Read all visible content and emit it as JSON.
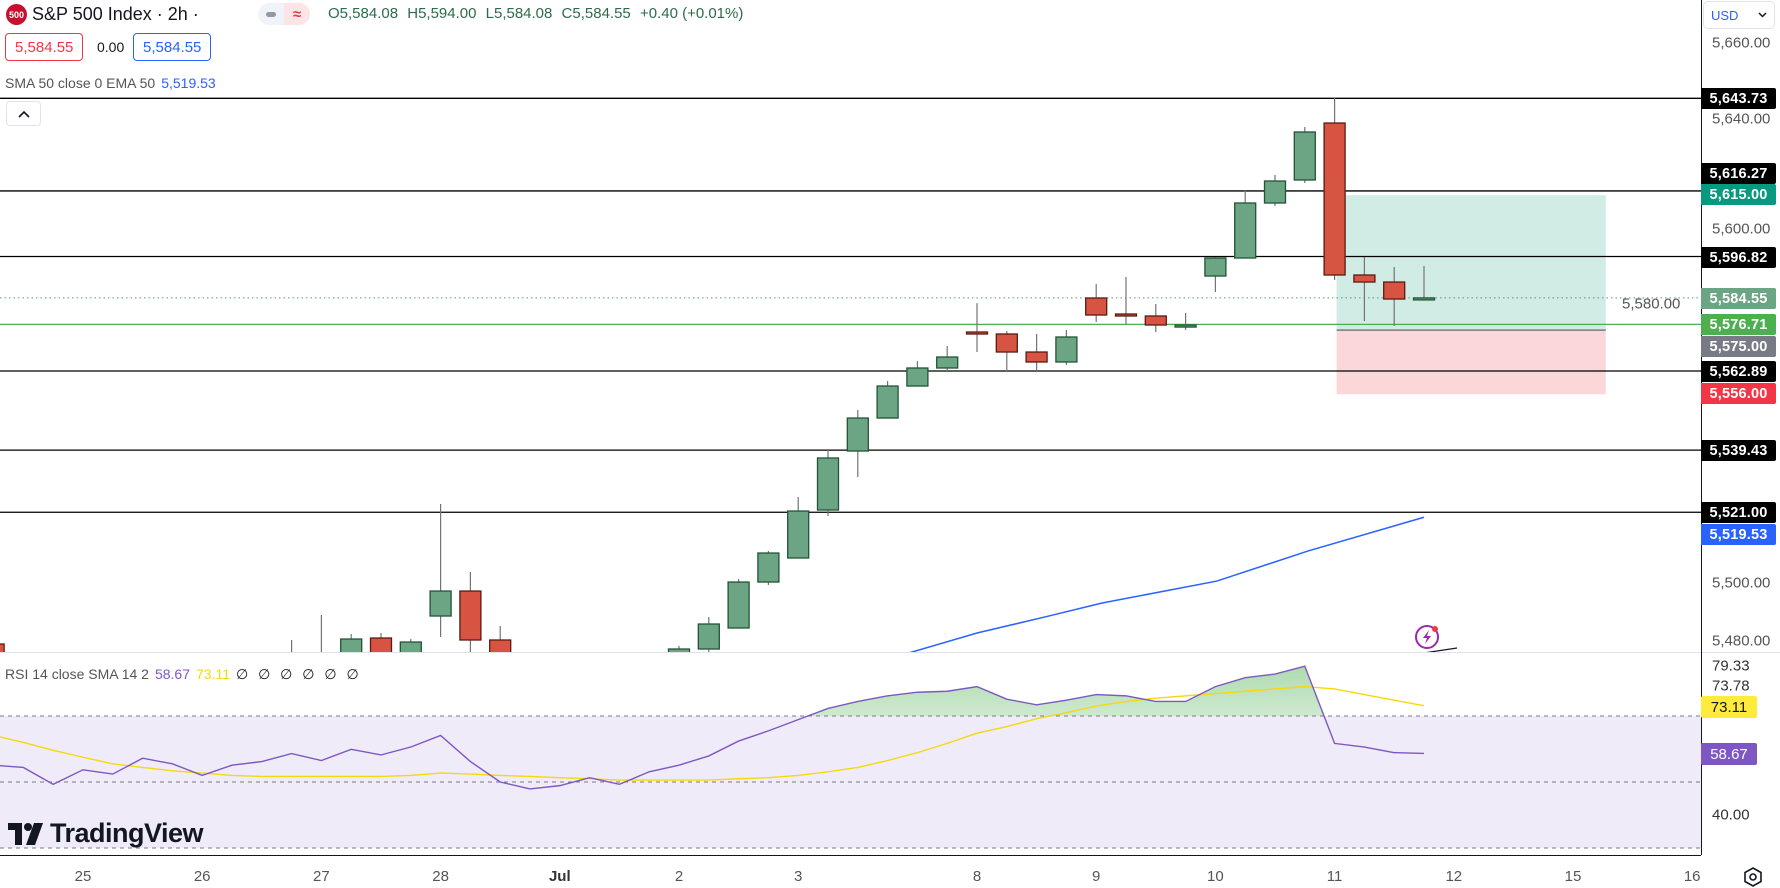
{
  "header": {
    "logo_text": "500",
    "title": "S&P 500 Index · 2h ·",
    "open": "O5,584.08",
    "high": "H5,594.00",
    "low": "L5,584.08",
    "close": "C5,584.55",
    "change": "+0.40 (+0.01%)",
    "sell_price": "5,584.55",
    "spread": "0.00",
    "buy_price": "5,584.55"
  },
  "ema_legend": {
    "label": "SMA 50 close 0 EMA 50",
    "value": "5,519.53"
  },
  "rsi_legend": {
    "label": "RSI 14 close SMA 14 2",
    "rsi": "58.67",
    "sma": "73.11",
    "extras": "∅ ∅ ∅ ∅ ∅ ∅"
  },
  "currency": "USD",
  "branding": "TradingView",
  "price_badges": [
    {
      "label": "5,643.73",
      "bg": "#000000"
    },
    {
      "label": "5,616.27",
      "bg": "#000000"
    },
    {
      "label": "5,615.00",
      "bg": "#089981"
    },
    {
      "label": "5,596.82",
      "bg": "#000000"
    },
    {
      "label": "5,584.55",
      "bg": "#6ba583"
    },
    {
      "label": "5,576.71",
      "bg": "#4caf50"
    },
    {
      "label": "5,575.00",
      "bg": "#787b86"
    },
    {
      "label": "5,562.89",
      "bg": "#000000"
    },
    {
      "label": "5,556.00",
      "bg": "#f23645"
    },
    {
      "label": "5,539.43",
      "bg": "#000000"
    },
    {
      "label": "5,521.00",
      "bg": "#000000"
    },
    {
      "label": "5,519.53",
      "bg": "#2962ff"
    }
  ],
  "rsi_axis": {
    "ticks": [
      "79.33",
      "73.78",
      "40.00"
    ],
    "sma_badge": "73.11",
    "rsi_badge": "58.67"
  },
  "chart_data": {
    "type": "candlestick",
    "symbol": "S&P 500 Index",
    "interval": "2h",
    "price_ticks": [
      {
        "value": 5660,
        "label": "5,660.00"
      },
      {
        "value": 5640,
        "label": "5,640.00"
      },
      {
        "value": 5600,
        "label": "5,600.00"
      },
      {
        "value": 5580,
        "label": "5,580.00"
      },
      {
        "value": 5500,
        "label": "5,500.00"
      },
      {
        "value": 5480,
        "label": "5,480.00"
      }
    ],
    "time_labels": [
      {
        "bar": 3,
        "label": "25"
      },
      {
        "bar": 7,
        "label": "26"
      },
      {
        "bar": 11,
        "label": "27"
      },
      {
        "bar": 15,
        "label": "28"
      },
      {
        "bar": 19,
        "label": "Jul",
        "bold": true
      },
      {
        "bar": 23,
        "label": "2"
      },
      {
        "bar": 27,
        "label": "3"
      },
      {
        "bar": 33,
        "label": "8"
      },
      {
        "bar": 37,
        "label": "9"
      },
      {
        "bar": 41,
        "label": "10"
      },
      {
        "bar": 45,
        "label": "11"
      },
      {
        "bar": 49,
        "label": "12"
      },
      {
        "bar": 53,
        "label": "15"
      },
      {
        "bar": 57,
        "label": "16"
      }
    ],
    "candles": [
      {
        "bar": 0,
        "o": 5481.94,
        "h": 5483.5,
        "l": 5473,
        "c": 5476
      },
      {
        "bar": 10,
        "o": 5472,
        "h": 5483.13,
        "l": 5468,
        "c": 5474
      },
      {
        "bar": 11,
        "o": 5474,
        "h": 5490.54,
        "l": 5468,
        "c": 5476
      },
      {
        "bar": 12,
        "o": 5477.2,
        "h": 5484.91,
        "l": 5474,
        "c": 5483.42
      },
      {
        "bar": 13,
        "o": 5483.72,
        "h": 5485.2,
        "l": 5474,
        "c": 5477.2
      },
      {
        "bar": 14,
        "o": 5477.2,
        "h": 5483.42,
        "l": 5474,
        "c": 5482.53
      },
      {
        "bar": 15,
        "o": 5490.24,
        "h": 5523.45,
        "l": 5484.02,
        "c": 5497.65
      },
      {
        "bar": 16,
        "o": 5497.65,
        "h": 5503.29,
        "l": 5478.98,
        "c": 5483.13
      },
      {
        "bar": 17,
        "o": 5483.13,
        "h": 5487.28,
        "l": 5475,
        "c": 5477.2
      },
      {
        "bar": 19,
        "o": 5474,
        "h": 5479.6,
        "l": 5470,
        "c": 5476
      },
      {
        "bar": 23,
        "o": 5477.2,
        "h": 5481.4,
        "l": 5475,
        "c": 5480.46
      },
      {
        "bar": 24,
        "o": 5480.46,
        "h": 5489.95,
        "l": 5478.98,
        "c": 5487.87
      },
      {
        "bar": 25,
        "o": 5486.69,
        "h": 5501.21,
        "l": 5486.69,
        "c": 5500.32
      },
      {
        "bar": 26,
        "o": 5500.32,
        "h": 5509.51,
        "l": 5499.43,
        "c": 5508.92
      },
      {
        "bar": 27,
        "o": 5507.44,
        "h": 5525.52,
        "l": 5507.44,
        "c": 5521.37
      },
      {
        "bar": 28,
        "o": 5521.67,
        "h": 5539.46,
        "l": 5519.89,
        "c": 5537.09
      },
      {
        "bar": 29,
        "o": 5539.16,
        "h": 5551.32,
        "l": 5531.45,
        "c": 5548.94
      },
      {
        "bar": 30,
        "o": 5548.94,
        "h": 5559.91,
        "l": 5548.94,
        "c": 5558.43
      },
      {
        "bar": 31,
        "o": 5558.43,
        "h": 5565.84,
        "l": 5558.43,
        "c": 5563.77
      },
      {
        "bar": 32,
        "o": 5563.77,
        "h": 5570.29,
        "l": 5562.58,
        "c": 5567.03
      },
      {
        "bar": 33,
        "o": 5574.44,
        "h": 5583.0,
        "l": 5568.51,
        "c": 5573.85
      },
      {
        "bar": 34,
        "o": 5573.85,
        "h": 5574.74,
        "l": 5562.58,
        "c": 5568.51
      },
      {
        "bar": 35,
        "o": 5568.51,
        "h": 5573.85,
        "l": 5562.58,
        "c": 5565.55
      },
      {
        "bar": 36,
        "o": 5565.55,
        "h": 5575.03,
        "l": 5564.66,
        "c": 5572.96
      },
      {
        "bar": 37,
        "o": 5584.52,
        "h": 5588.67,
        "l": 5577.41,
        "c": 5579.48
      },
      {
        "bar": 38,
        "o": 5579.78,
        "h": 5590.75,
        "l": 5576.81,
        "c": 5579.19
      },
      {
        "bar": 39,
        "o": 5579.19,
        "h": 5582.74,
        "l": 5574.44,
        "c": 5576.52
      },
      {
        "bar": 40,
        "o": 5576.2,
        "h": 5580.07,
        "l": 5575.03,
        "c": 5576.5
      },
      {
        "bar": 41,
        "o": 5591.04,
        "h": 5596.68,
        "l": 5586.3,
        "c": 5596.38
      },
      {
        "bar": 42,
        "o": 5596.38,
        "h": 5616.54,
        "l": 5596.38,
        "c": 5612.69
      },
      {
        "bar": 43,
        "o": 5612.69,
        "h": 5620.99,
        "l": 5611.8,
        "c": 5619.21
      },
      {
        "bar": 44,
        "o": 5619.51,
        "h": 5635.22,
        "l": 5618.62,
        "c": 5633.74
      },
      {
        "bar": 45,
        "o": 5636.4,
        "h": 5643.73,
        "l": 5589.86,
        "c": 5591.34
      },
      {
        "bar": 46,
        "o": 5591.34,
        "h": 5596.68,
        "l": 5577.7,
        "c": 5589.26
      },
      {
        "bar": 47,
        "o": 5589.26,
        "h": 5593.71,
        "l": 5576.22,
        "c": 5584.22
      },
      {
        "bar": 48,
        "o": 5584.08,
        "h": 5594.0,
        "l": 5584.08,
        "c": 5584.55
      }
    ],
    "ema50": [
      [
        29,
        5474
      ],
      [
        30.6,
        5479
      ],
      [
        33,
        5485.2
      ],
      [
        35.3,
        5490.0
      ],
      [
        37.2,
        5494.1
      ],
      [
        41.05,
        5500.6
      ],
      [
        44.1,
        5509.5
      ],
      [
        48,
        5519.53
      ]
    ],
    "horizontal_levels": [
      5643.73,
      5616.27,
      5596.82,
      5562.89,
      5539.43,
      5521.0
    ],
    "support_line": 5576.71,
    "last_price": 5584.55,
    "position": {
      "type": "long",
      "target": 5615.0,
      "entry": 5575.0,
      "stop": 5556.0,
      "start_bar": 45,
      "end_bar": 54.1
    },
    "rsi": [
      55.1,
      54.4,
      49.3,
      53.7,
      52.4,
      57.2,
      55.5,
      52.0,
      55.1,
      56.2,
      58.6,
      56.5,
      59.9,
      58.2,
      60.6,
      64.1,
      56.2,
      50.0,
      47.9,
      48.9,
      51.3,
      49.3,
      53.1,
      55.1,
      57.9,
      62.4,
      65.5,
      68.9,
      72.3,
      74.4,
      76.1,
      77.2,
      77.5,
      78.9,
      75.1,
      73.4,
      74.8,
      76.5,
      76.1,
      74.4,
      74.4,
      78.9,
      81.6,
      82.7,
      85.1,
      61.7,
      60.6,
      58.9,
      58.67
    ],
    "rsi_sma": [
      64.1,
      62.0,
      59.6,
      57.5,
      55.5,
      54.4,
      53.4,
      52.7,
      52.0,
      51.7,
      51.7,
      51.7,
      51.7,
      51.7,
      52.0,
      52.7,
      52.4,
      52.0,
      51.7,
      51.3,
      51.0,
      50.6,
      50.6,
      50.6,
      50.6,
      51.0,
      51.3,
      52.0,
      53.1,
      54.4,
      56.5,
      58.9,
      61.7,
      64.8,
      66.8,
      69.2,
      71.0,
      73.0,
      74.4,
      75.4,
      76.1,
      76.8,
      77.5,
      78.2,
      78.9,
      78.2,
      76.5,
      74.8,
      73.11
    ],
    "rsi_levels": [
      70,
      50,
      30
    ],
    "colors": {
      "up": "#6ba583",
      "up_border": "#225437",
      "down": "#d75442",
      "down_border": "#5b1a13",
      "ema": "#2962ff",
      "rsi": "#7e57c2",
      "rsi_sma": "#f5d90a"
    }
  }
}
